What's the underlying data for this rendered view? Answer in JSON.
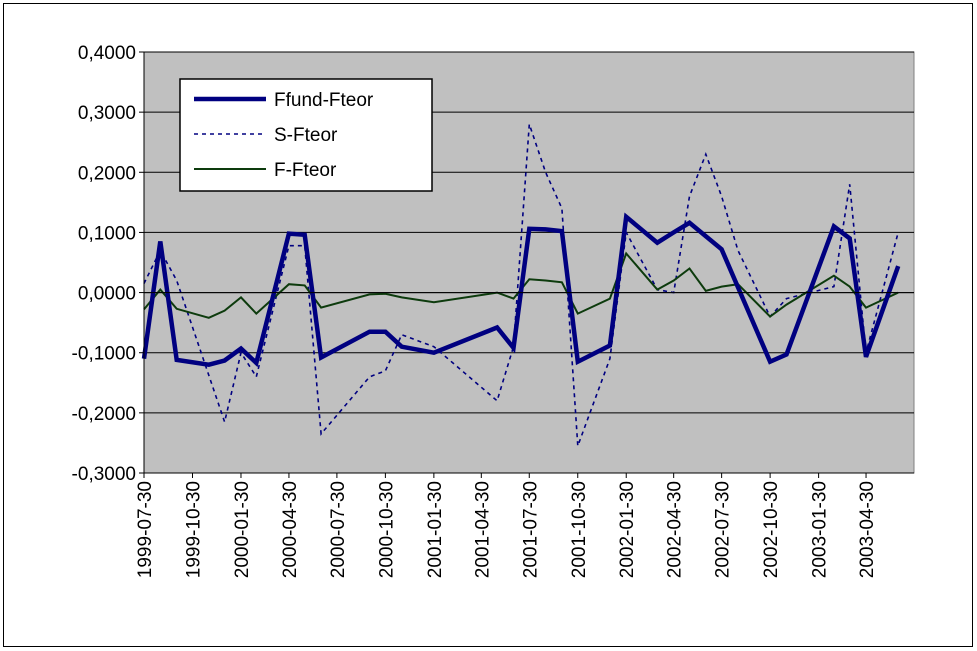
{
  "chart_data": {
    "type": "line",
    "title": "",
    "xlabel": "",
    "ylabel": "",
    "ylim": [
      -0.3,
      0.4
    ],
    "yticks": [
      0.4,
      0.3,
      0.2,
      0.1,
      0.0,
      -0.1,
      -0.2,
      -0.3
    ],
    "ytick_labels": [
      "0,4000",
      "0,3000",
      "0,2000",
      "0,1000",
      "0,0000",
      "-0,1000",
      "-0,2000",
      "-0,3000"
    ],
    "x_tick_labels": [
      "1999-07-30",
      "1999-10-30",
      "2000-01-30",
      "2000-04-30",
      "2000-07-30",
      "2000-10-30",
      "2001-01-30",
      "2001-04-30",
      "2001-07-30",
      "2001-10-30",
      "2002-01-30",
      "2002-04-30",
      "2002-07-30",
      "2002-10-30",
      "2003-01-30",
      "2003-04-30"
    ],
    "grid": true,
    "plot_background": "#c0c0c0",
    "legend_position": "top-left",
    "series": [
      {
        "name": "Ffund-Fteor",
        "color": "#000080",
        "style": "solid-thick",
        "x": [
          "1999-07-30",
          "1999-08-30",
          "1999-09-30",
          "1999-11-30",
          "1999-12-30",
          "2000-01-30",
          "2000-02-28",
          "2000-04-30",
          "2000-05-30",
          "2000-06-30",
          "2000-09-30",
          "2000-10-30",
          "2000-11-30",
          "2001-01-30",
          "2001-05-30",
          "2001-06-30",
          "2001-07-30",
          "2001-08-30",
          "2001-09-30",
          "2001-10-30",
          "2001-12-30",
          "2002-01-30",
          "2002-03-30",
          "2002-04-30",
          "2002-05-30",
          "2002-07-30",
          "2002-10-30",
          "2002-11-30",
          "2003-02-28",
          "2003-03-30",
          "2003-04-30",
          "2003-06-30"
        ],
        "values": [
          -0.11,
          0.085,
          -0.112,
          -0.12,
          -0.113,
          -0.093,
          -0.117,
          0.098,
          0.096,
          -0.108,
          -0.065,
          -0.065,
          -0.09,
          -0.1,
          -0.058,
          -0.092,
          0.106,
          0.105,
          0.102,
          -0.115,
          -0.088,
          0.126,
          0.083,
          0.1,
          0.116,
          0.072,
          -0.115,
          -0.103,
          0.11,
          0.09,
          -0.107,
          0.044
        ]
      },
      {
        "name": "S-Fteor",
        "color": "#000080",
        "style": "dotted",
        "x": [
          "1999-07-30",
          "1999-08-30",
          "1999-09-30",
          "1999-12-30",
          "2000-01-30",
          "2000-02-28",
          "2000-04-30",
          "2000-05-30",
          "2000-06-30",
          "2000-09-30",
          "2000-10-30",
          "2000-11-30",
          "2001-01-30",
          "2001-05-30",
          "2001-06-30",
          "2001-07-30",
          "2001-08-30",
          "2001-09-30",
          "2001-10-30",
          "2001-12-30",
          "2002-01-30",
          "2002-03-30",
          "2002-04-30",
          "2002-05-30",
          "2002-06-30",
          "2002-07-30",
          "2002-08-30",
          "2002-10-30",
          "2002-11-30",
          "2003-02-28",
          "2003-03-30",
          "2003-04-30",
          "2003-06-30"
        ],
        "values": [
          0.015,
          0.07,
          0.02,
          -0.215,
          -0.1,
          -0.14,
          0.078,
          0.078,
          -0.235,
          -0.14,
          -0.13,
          -0.07,
          -0.09,
          -0.18,
          -0.09,
          0.28,
          0.2,
          0.14,
          -0.255,
          -0.11,
          0.1,
          0.005,
          0.0,
          0.16,
          0.23,
          0.16,
          0.07,
          -0.04,
          -0.01,
          0.01,
          0.18,
          -0.1,
          0.1
        ]
      },
      {
        "name": "F-Fteor",
        "color": "#0d3b0d",
        "style": "solid-thin",
        "x": [
          "1999-07-30",
          "1999-08-30",
          "1999-09-30",
          "1999-11-30",
          "1999-12-30",
          "2000-01-30",
          "2000-02-28",
          "2000-04-30",
          "2000-05-30",
          "2000-06-30",
          "2000-09-30",
          "2000-10-30",
          "2000-11-30",
          "2001-01-30",
          "2001-05-30",
          "2001-06-30",
          "2001-07-30",
          "2001-08-30",
          "2001-09-30",
          "2001-10-30",
          "2001-12-30",
          "2002-01-30",
          "2002-03-30",
          "2002-04-30",
          "2002-05-30",
          "2002-06-30",
          "2002-07-30",
          "2002-08-30",
          "2002-10-30",
          "2002-11-30",
          "2003-02-28",
          "2003-03-30",
          "2003-04-30",
          "2003-06-30"
        ],
        "values": [
          -0.028,
          0.005,
          -0.027,
          -0.042,
          -0.03,
          -0.008,
          -0.035,
          0.014,
          0.012,
          -0.025,
          -0.003,
          -0.002,
          -0.008,
          -0.016,
          0.0,
          -0.01,
          0.022,
          0.02,
          0.017,
          -0.035,
          -0.01,
          0.065,
          0.005,
          0.02,
          0.04,
          0.003,
          0.01,
          0.014,
          -0.04,
          -0.02,
          0.028,
          0.01,
          -0.025,
          0.0
        ]
      }
    ]
  }
}
